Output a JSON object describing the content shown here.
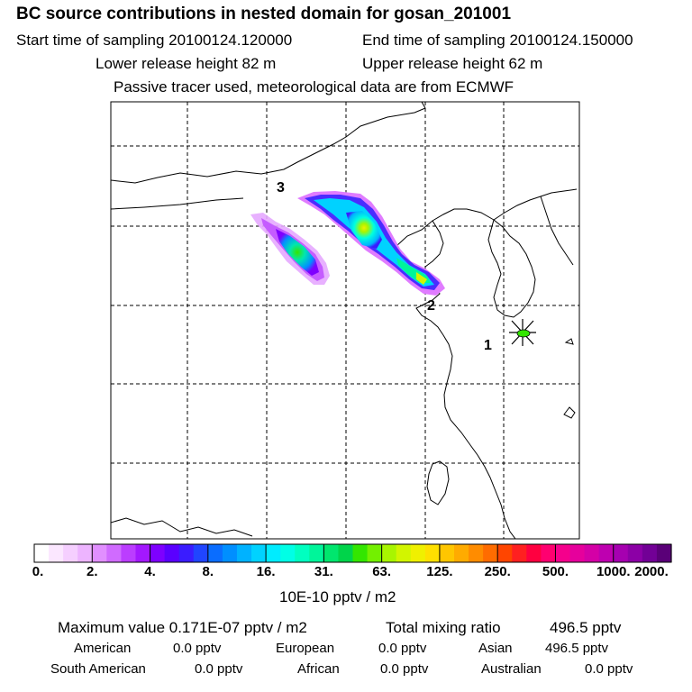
{
  "header": {
    "title": "BC  source contributions in nested domain for gosan_201001",
    "start_label": "Start time of sampling 20100124.120000",
    "end_label": "End time of sampling 20100124.150000",
    "lower_label": "Lower release height   82 m",
    "upper_label": "Upper release height   62 m",
    "tracer_note": "Passive tracer used, meteorological data are from ECMWF"
  },
  "chart_data": {
    "type": "heatmap",
    "title": "BC  source contributions in nested domain for gosan_201001",
    "map_labels": [
      "1",
      "2",
      "3"
    ],
    "colorbar": {
      "ticks": [
        "0.",
        "2.",
        "4.",
        "8.",
        "16.",
        "31.",
        "63.",
        "125.",
        "250.",
        "500.",
        "1000.",
        "2000."
      ],
      "unit": "10E-10 pptv / m2",
      "colors": [
        "#ffffff",
        "#fbe7ff",
        "#f5cfff",
        "#edb4ff",
        "#e18fff",
        "#d06bff",
        "#bb3dff",
        "#a318ff",
        "#7e00ff",
        "#5a00ff",
        "#3a1cff",
        "#2045ff",
        "#0a6dff",
        "#008fff",
        "#00b2ff",
        "#00d2ff",
        "#00ecff",
        "#00ffe6",
        "#00ffc0",
        "#00f59a",
        "#00e66e",
        "#00d44a",
        "#33e600",
        "#73f000",
        "#a8f500",
        "#d2f500",
        "#f0f000",
        "#ffe000",
        "#ffc600",
        "#ffab00",
        "#ff8c00",
        "#ff6c00",
        "#ff4500",
        "#ff2020",
        "#ff0040",
        "#ff0070",
        "#f5008c",
        "#e6009c",
        "#d400a6",
        "#be00b0",
        "#a600b0",
        "#8c00a6",
        "#720096",
        "#5a0078"
      ]
    }
  },
  "footer": {
    "max_label": "Maximum value  0.171E-07 pptv / m2",
    "total_label": "Total mixing ratio",
    "total_value": "496.5 pptv",
    "regions": [
      {
        "name": "American",
        "value": "0.0 pptv"
      },
      {
        "name": "European",
        "value": "0.0 pptv"
      },
      {
        "name": "Asian",
        "value": "496.5 pptv"
      },
      {
        "name": "South American",
        "value": "0.0 pptv"
      },
      {
        "name": "African",
        "value": "0.0 pptv"
      },
      {
        "name": "Australian",
        "value": "0.0 pptv"
      }
    ]
  }
}
